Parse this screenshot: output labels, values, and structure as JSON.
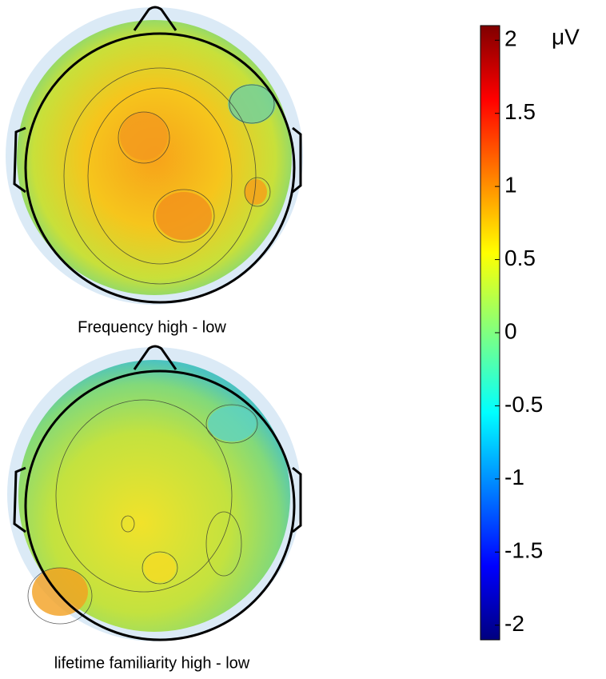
{
  "panels": [
    {
      "label": "Frequency high - low"
    },
    {
      "label": "lifetime familiarity high - low"
    }
  ],
  "colorbar": {
    "unit": "μV",
    "ylim": [
      -2.1,
      2.1
    ],
    "yticks": [
      2,
      1.5,
      1,
      0.5,
      0,
      -0.5,
      -1,
      -1.5,
      -2
    ]
  }
}
